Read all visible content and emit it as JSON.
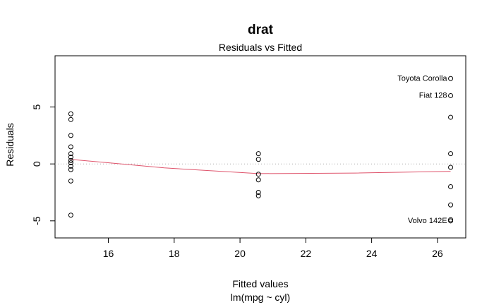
{
  "chart_data": {
    "type": "scatter",
    "title": "drat",
    "subtitle": "Residuals vs Fitted",
    "xlabel": "Fitted values",
    "xlabel2": "lm(mpg ~ cyl)",
    "ylabel": "Residuals",
    "xlim": [
      14.38,
      26.86
    ],
    "ylim": [
      -6.5,
      9.5
    ],
    "xticks": [
      16,
      18,
      20,
      22,
      24,
      26
    ],
    "yticks": [
      -5,
      0,
      5
    ],
    "grid": false,
    "reference_line_y": 0,
    "point_color": "#000000",
    "smooth_color": "#DF536B",
    "reference_color": "#AAAAAA",
    "points": [
      {
        "x": 14.86,
        "y": 4.4
      },
      {
        "x": 14.86,
        "y": 3.9
      },
      {
        "x": 14.86,
        "y": 2.5
      },
      {
        "x": 14.86,
        "y": 1.5
      },
      {
        "x": 14.86,
        "y": 0.9
      },
      {
        "x": 14.86,
        "y": 0.6
      },
      {
        "x": 14.86,
        "y": 0.3
      },
      {
        "x": 14.86,
        "y": 0.1
      },
      {
        "x": 14.86,
        "y": -0.2
      },
      {
        "x": 14.86,
        "y": -0.5
      },
      {
        "x": 14.86,
        "y": -1.5
      },
      {
        "x": 14.86,
        "y": -4.5
      },
      {
        "x": 20.56,
        "y": 0.9
      },
      {
        "x": 20.56,
        "y": 0.4
      },
      {
        "x": 20.56,
        "y": -0.9
      },
      {
        "x": 20.56,
        "y": -1.4
      },
      {
        "x": 20.56,
        "y": -2.5
      },
      {
        "x": 20.56,
        "y": -2.8
      },
      {
        "x": 26.4,
        "y": 7.5,
        "label": "Toyota Corolla"
      },
      {
        "x": 26.4,
        "y": 6.0,
        "label": "Fiat 128"
      },
      {
        "x": 26.4,
        "y": 4.1
      },
      {
        "x": 26.4,
        "y": 0.9
      },
      {
        "x": 26.4,
        "y": -0.3
      },
      {
        "x": 26.4,
        "y": -2.0
      },
      {
        "x": 26.4,
        "y": -3.6
      },
      {
        "x": 26.4,
        "y": -4.9
      },
      {
        "x": 26.4,
        "y": -5.0,
        "label": "Volvo 142E"
      }
    ],
    "smooth_line": {
      "x": [
        14.86,
        17.7,
        20.56,
        23.5,
        26.4
      ],
      "y": [
        0.4,
        -0.35,
        -0.85,
        -0.8,
        -0.65
      ]
    }
  }
}
